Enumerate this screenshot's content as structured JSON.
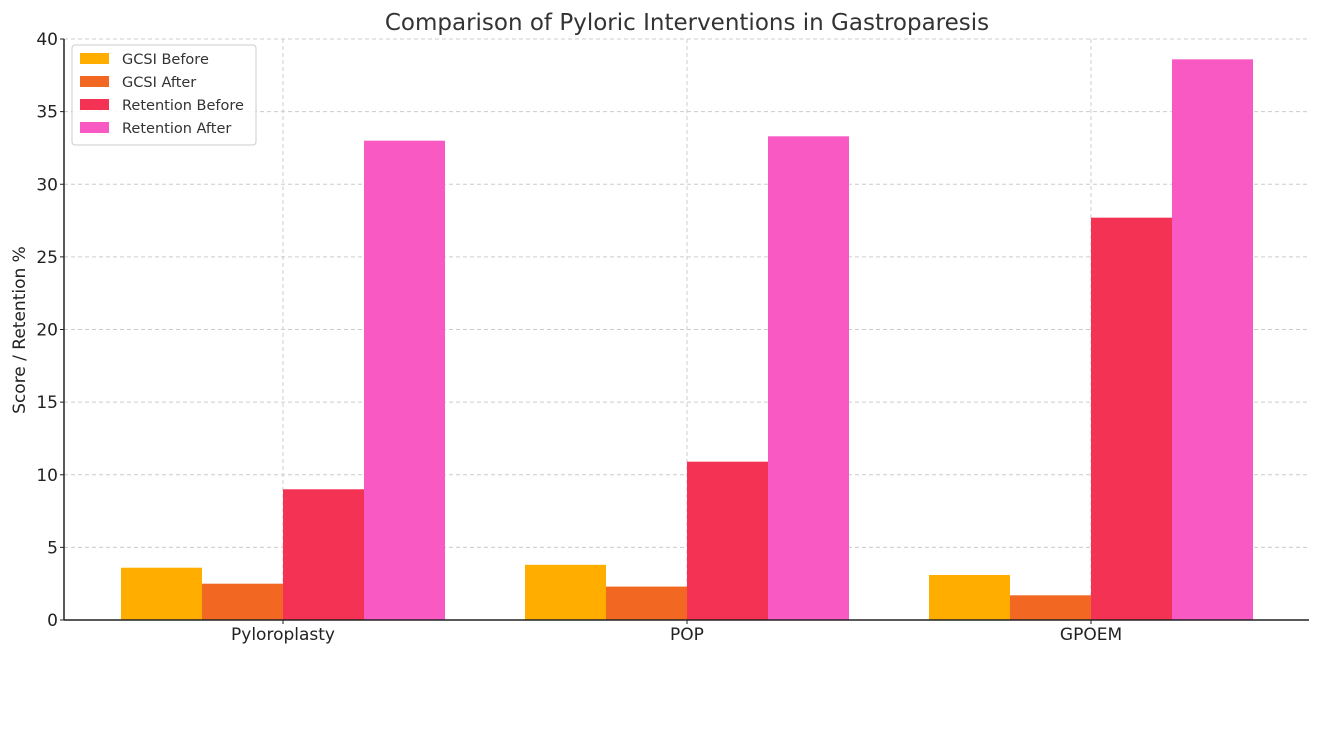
{
  "chart_data": {
    "type": "bar",
    "title": "Comparison of Pyloric Interventions in Gastroparesis",
    "xlabel": "",
    "ylabel": "Score / Retention %",
    "ylim": [
      0,
      40
    ],
    "yticks": [
      0,
      5,
      10,
      15,
      20,
      25,
      30,
      35,
      40
    ],
    "grid": true,
    "legend_position": "top-left",
    "categories": [
      "Pyloroplasty",
      "POP",
      "GPOEM"
    ],
    "series": [
      {
        "name": "GCSI Before",
        "color": "#FFAE00",
        "values": [
          3.6,
          3.8,
          3.1
        ]
      },
      {
        "name": "GCSI After",
        "color": "#F26722",
        "values": [
          2.5,
          2.3,
          1.7
        ]
      },
      {
        "name": "Retention Before",
        "color": "#F43254",
        "values": [
          9.0,
          10.9,
          27.7
        ]
      },
      {
        "name": "Retention After",
        "color": "#F859C3",
        "values": [
          33.0,
          33.3,
          38.6
        ]
      }
    ]
  }
}
